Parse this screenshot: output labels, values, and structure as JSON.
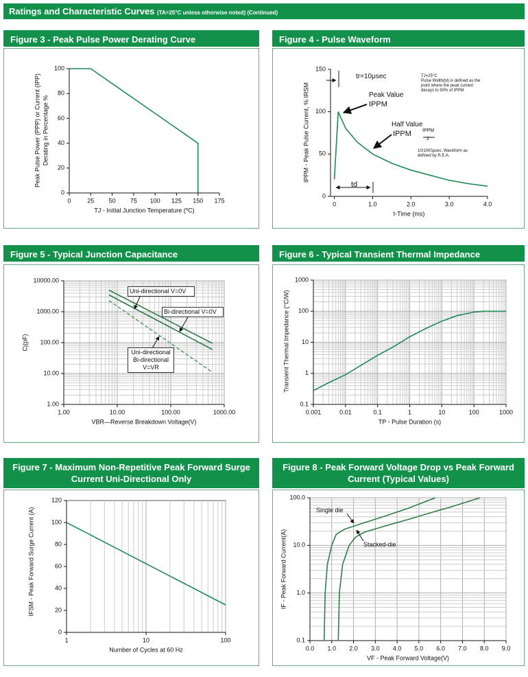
{
  "header": {
    "title": "Ratings and Characteristic Curves",
    "note": "(TA=25°C unless otherwise noted) (Continued)"
  },
  "chart_data": [
    {
      "type": "line",
      "title": "Figure 3 - Peak Pulse Power Derating Curve",
      "xlabel": "TJ - Initial Junction Temperature (ºC)",
      "ylabel": [
        "Peak Pulse Power (PPP) or Current (IPP)",
        "Derating in Percentage %"
      ],
      "x": [
        0,
        25,
        150,
        150
      ],
      "series": [
        {
          "color": "#1e8a55",
          "values": [
            100,
            100,
            40,
            0
          ]
        }
      ],
      "xlim": [
        0,
        175
      ],
      "xticks": [
        0,
        25,
        50,
        75,
        100,
        125,
        150,
        175
      ],
      "ylim": [
        0,
        100
      ],
      "yticks": [
        0,
        20,
        40,
        60,
        80,
        100
      ],
      "grid": false
    },
    {
      "type": "line",
      "title": "Figure 4 - Pulse Waveform",
      "xlabel": "t-Time (ms)",
      "ylabel": [
        "IPPM - Peak Pulse Current, % IRSM"
      ],
      "x": [
        0,
        0.1,
        0.3,
        0.6,
        1,
        1.5,
        2,
        2.5,
        3,
        3.5,
        4
      ],
      "series": [
        {
          "color": "#1e8a55",
          "values": [
            20,
            100,
            80,
            64,
            50,
            39,
            31,
            25,
            19,
            15,
            12
          ]
        }
      ],
      "xlim": [
        -0.1,
        4
      ],
      "xticks": [
        0,
        {
          "value": 1,
          "label": "1.0"
        },
        {
          "value": 2,
          "label": "2.0"
        },
        {
          "value": 3,
          "label": "3.0"
        },
        {
          "value": 4,
          "label": "4.0"
        }
      ],
      "ylim": [
        0,
        150
      ],
      "yticks": [
        0,
        50,
        100,
        150
      ],
      "grid": false,
      "annotations": [
        "tr=10μsec",
        "Peak Value",
        "IPPM",
        "Half Value",
        "IPPM",
        "IPPM",
        "2",
        "TJ=25°C",
        "Pulse Width(td) is defined as the point where the peak current decays to 50% of IPPM",
        "10/1000μsec. Waveform as defined by R.E.A.",
        "td"
      ]
    },
    {
      "type": "line",
      "title": "Figure 5 - Typical Junction Capacitance",
      "xlabel": "VBR—Reverse Breakdown Voltage(V)",
      "ylabel": [
        "Cj(pF)"
      ],
      "x": [
        7,
        600
      ],
      "series": [
        {
          "name": "Uni-directional V=0V",
          "color": "#2f7d46",
          "values": [
            5000,
            95
          ]
        },
        {
          "name": "Bi-directional V=0V",
          "color": "#2f7d46",
          "values": [
            3500,
            60
          ]
        },
        {
          "name": "Uni-directional Bi-directional V=VR",
          "color": "#5a9e6e",
          "dash": true,
          "values": [
            2300,
            11
          ]
        }
      ],
      "xscale": "log",
      "yscale": "log",
      "xlim": [
        1,
        1000
      ],
      "xticks": [
        {
          "value": 1,
          "label": "1.00"
        },
        {
          "value": 10,
          "label": "10.00"
        },
        {
          "value": 100,
          "label": "100.00"
        },
        {
          "value": 1000,
          "label": "1000.00"
        }
      ],
      "ylim": [
        1,
        10000
      ],
      "yticks": [
        {
          "value": 1,
          "label": "1.00"
        },
        {
          "value": 10,
          "label": "10.00"
        },
        {
          "value": 100,
          "label": "100.00"
        },
        {
          "value": 1000,
          "label": "1000.00"
        },
        {
          "value": 10000,
          "label": "10000.00"
        }
      ],
      "grid": "both"
    },
    {
      "type": "line",
      "title": "Figure 6 - Typical Transient Thermal Impedance",
      "xlabel": "TP - Pulse Duration (s)",
      "ylabel": [
        "Transient Thermal Impedance (°C/W)"
      ],
      "x": [
        0.001,
        0.003,
        0.01,
        0.03,
        0.1,
        0.3,
        1,
        3,
        10,
        30,
        100,
        200,
        1000
      ],
      "series": [
        {
          "color": "#1e8a55",
          "values": [
            0.28,
            0.5,
            0.9,
            1.8,
            3.8,
            7,
            15,
            27,
            48,
            72,
            94,
            100,
            100
          ]
        }
      ],
      "xscale": "log",
      "yscale": "log",
      "xlim": [
        0.001,
        1000
      ],
      "xticks": [
        0.001,
        0.01,
        0.1,
        1,
        10,
        100,
        1000
      ],
      "ylim": [
        0.1,
        1000
      ],
      "yticks": [
        0.1,
        1,
        10,
        100,
        1000
      ],
      "grid": "both"
    },
    {
      "type": "line",
      "title": "Figure 7 - Maximum Non-Repetitive Peak Forward Surge Current Uni-Directional Only",
      "xlabel": "Number of Cycles at 60 Hz",
      "ylabel": [
        "IFSM - Peak Forward Surge Current (A)"
      ],
      "x": [
        1,
        100
      ],
      "series": [
        {
          "color": "#1e8a55",
          "values": [
            100,
            25
          ]
        }
      ],
      "xscale": "log",
      "xlim": [
        1,
        100
      ],
      "xticks": [
        1,
        10,
        100
      ],
      "ylim": [
        0,
        120
      ],
      "yticks": [
        0,
        20,
        40,
        60,
        80,
        100,
        120
      ],
      "grid": "x"
    },
    {
      "type": "line",
      "title": "Figure 8 - Peak Forward Voltage Drop vs Peak Forward Current (Typical Values)",
      "xlabel": "VF - Peak Forward Voltage(V)",
      "ylabel": [
        "IF - Peak Forward Current(A)"
      ],
      "series": [
        {
          "name": "Single die",
          "color": "#2f7d46",
          "x": [
            0.65,
            0.7,
            0.8,
            1.0,
            1.2,
            1.6,
            2.5,
            3.5,
            4.5,
            5.75
          ],
          "values": [
            0.1,
            1,
            4,
            10,
            17,
            22,
            30,
            42,
            60,
            100
          ]
        },
        {
          "name": "Stacked-die",
          "color": "#2f7d46",
          "x": [
            1.3,
            1.35,
            1.5,
            1.8,
            2.1,
            2.5,
            3.5,
            4.5,
            5.5,
            6.5,
            7.8
          ],
          "values": [
            0.1,
            1,
            4,
            10,
            15,
            19,
            26,
            35,
            48,
            65,
            100
          ]
        }
      ],
      "yscale": "log",
      "xlim": [
        0,
        9
      ],
      "xticks": [
        {
          "value": 0,
          "label": "0.0"
        },
        {
          "value": 1,
          "label": "1.0"
        },
        {
          "value": 2,
          "label": "2.0"
        },
        {
          "value": 3,
          "label": "3.0"
        },
        {
          "value": 4,
          "label": "4.0"
        },
        {
          "value": 5,
          "label": "5.0"
        },
        {
          "value": 6,
          "label": "6.0"
        },
        {
          "value": 7,
          "label": "7.0"
        },
        {
          "value": 8,
          "label": "8.0"
        },
        {
          "value": 9,
          "label": "9.0"
        }
      ],
      "ylim": [
        0.1,
        100
      ],
      "yticks": [
        0.1,
        {
          "value": 1,
          "label": "1.0"
        },
        {
          "value": 10,
          "label": "10.0"
        },
        {
          "value": 100,
          "label": "100.0"
        }
      ],
      "grid": "both"
    }
  ]
}
